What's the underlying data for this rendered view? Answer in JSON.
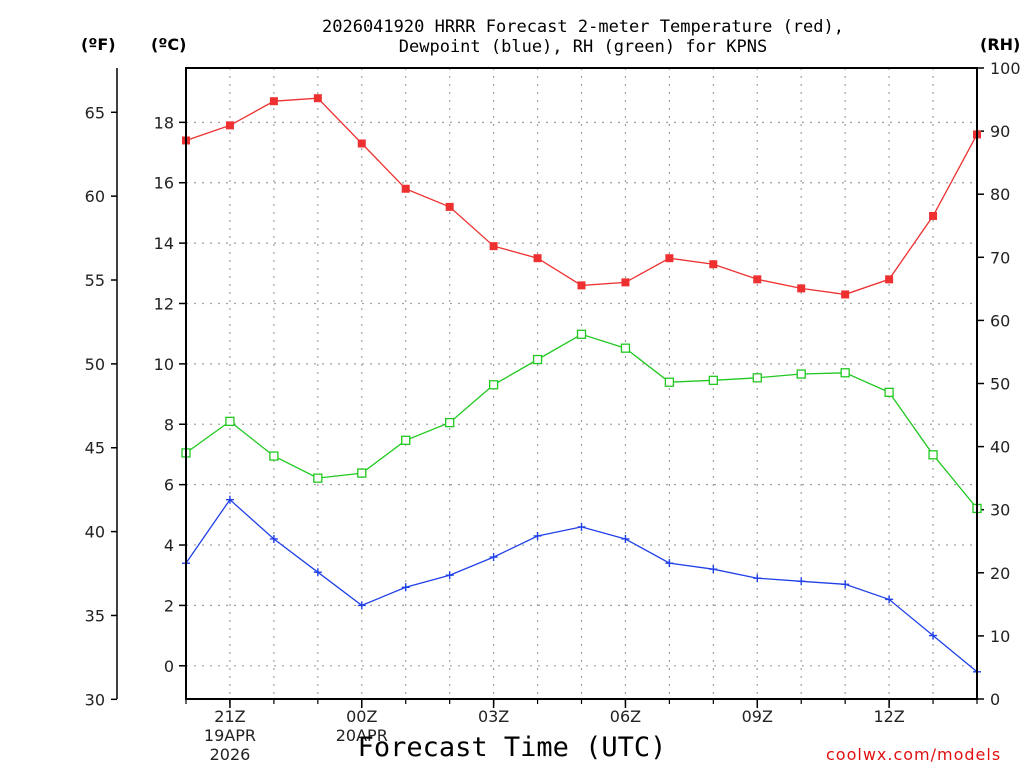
{
  "title": {
    "line1": "2026041920 HRRR Forecast 2-meter Temperature (red),",
    "line2": "Dewpoint (blue), RH (green) for KPNS"
  },
  "axis_units": {
    "fahrenheit": "(ºF)",
    "celsius": "(ºC)",
    "rh": "(RH)"
  },
  "xlabel": "Forecast Time (UTC)",
  "credit": "coolwx.com/models",
  "colors": {
    "temperature": "#ee3030",
    "dewpoint": "#2040e8",
    "rh": "#20c820",
    "grid": "#a0a0a0"
  },
  "chart_data": {
    "type": "line",
    "station": "KPNS",
    "model": "HRRR",
    "run": "2026041920",
    "x_hours": [
      20,
      21,
      22,
      23,
      24,
      25,
      26,
      27,
      28,
      29,
      30,
      31,
      32,
      33,
      34,
      35,
      36,
      37,
      38
    ],
    "x_ticks": [
      {
        "hour": 21,
        "lines": [
          "21Z",
          "19APR",
          "2026"
        ]
      },
      {
        "hour": 24,
        "lines": [
          "00Z",
          "20APR"
        ]
      },
      {
        "hour": 27,
        "lines": [
          "03Z"
        ]
      },
      {
        "hour": 30,
        "lines": [
          "06Z"
        ]
      },
      {
        "hour": 33,
        "lines": [
          "09Z"
        ]
      },
      {
        "hour": 36,
        "lines": [
          "12Z"
        ]
      }
    ],
    "celsius_axis": {
      "ylim": [
        -1.1,
        19.8
      ],
      "ticks": [
        0,
        2,
        4,
        6,
        8,
        10,
        12,
        14,
        16,
        18
      ]
    },
    "fahrenheit_axis": {
      "ticks": [
        30,
        35,
        40,
        45,
        50,
        55,
        60,
        65
      ]
    },
    "rh_axis": {
      "ylim": [
        0,
        100
      ],
      "ticks": [
        0,
        10,
        20,
        30,
        40,
        50,
        60,
        70,
        80,
        90,
        100
      ]
    },
    "series": [
      {
        "name": "2-meter Temperature",
        "axis": "celsius",
        "color": "red",
        "marker": "filled-square",
        "values": [
          17.4,
          17.9,
          18.7,
          18.8,
          17.3,
          15.8,
          15.2,
          13.9,
          13.5,
          12.6,
          12.7,
          13.5,
          13.3,
          12.8,
          12.5,
          12.3,
          12.8,
          14.9,
          17.6
        ]
      },
      {
        "name": "Dewpoint",
        "axis": "celsius",
        "color": "blue",
        "marker": "plus",
        "values": [
          3.4,
          5.5,
          4.2,
          3.1,
          2.0,
          2.6,
          3.0,
          3.6,
          4.3,
          4.6,
          4.2,
          3.4,
          3.2,
          2.9,
          2.8,
          2.7,
          2.2,
          1.0,
          -0.2
        ]
      },
      {
        "name": "RH",
        "axis": "rh",
        "color": "green",
        "marker": "open-square",
        "values": [
          39,
          44,
          38.5,
          35,
          35.8,
          41,
          43.8,
          49.8,
          53.8,
          57.8,
          55.6,
          50.2,
          50.5,
          50.9,
          51.5,
          51.7,
          48.6,
          38.7,
          30.2
        ]
      }
    ]
  }
}
